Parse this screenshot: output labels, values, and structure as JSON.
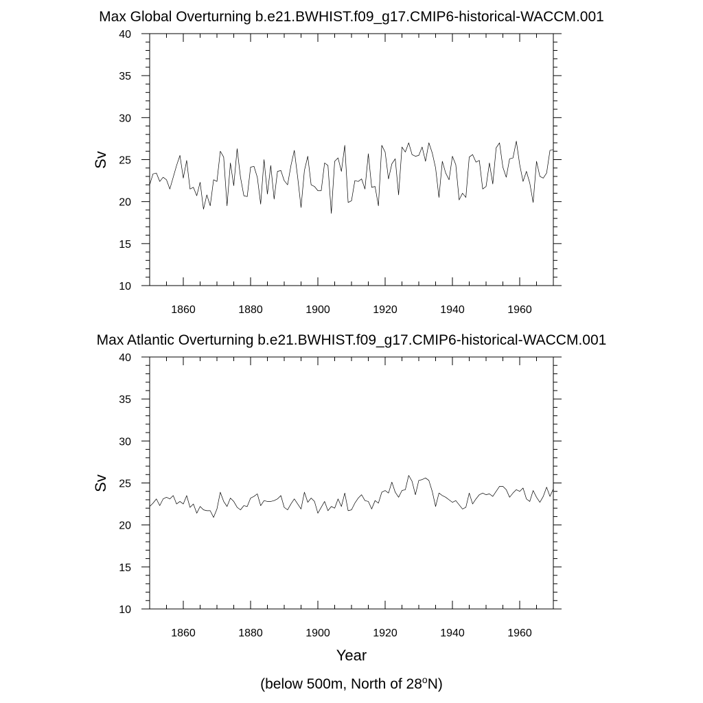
{
  "figure_footnote": "(below 500m, North of 28",
  "figure_footnote_sup": "o",
  "figure_footnote_end": "N)",
  "chart_data": [
    {
      "type": "line",
      "title": "Max Global Overturning b.e21.BWHIST.f09_g17.CMIP6-historical-WACCM.001",
      "xlabel": "",
      "ylabel": "Sv",
      "xlim": [
        1850,
        1970
      ],
      "ylim": [
        10,
        40
      ],
      "xticks": [
        1860,
        1880,
        1900,
        1920,
        1940,
        1960
      ],
      "yticks": [
        10,
        15,
        20,
        25,
        30,
        35,
        40
      ],
      "x_start": 1850,
      "x_step": 1,
      "series": [
        {
          "name": "Max Global Overturning",
          "values": [
            22.0,
            23.3,
            23.4,
            22.4,
            22.9,
            22.6,
            21.5,
            22.9,
            24.3,
            25.5,
            22.8,
            24.9,
            21.5,
            21.7,
            20.7,
            22.3,
            19.1,
            20.8,
            19.5,
            22.6,
            22.4,
            26.0,
            25.3,
            19.5,
            24.6,
            21.9,
            26.3,
            22.9,
            20.7,
            20.6,
            24.1,
            24.2,
            22.9,
            19.7,
            25.0,
            20.9,
            24.3,
            20.3,
            23.6,
            23.7,
            22.5,
            22.0,
            24.3,
            26.1,
            22.9,
            19.3,
            23.7,
            25.4,
            22.0,
            21.8,
            21.3,
            21.3,
            24.6,
            24.3,
            18.6,
            24.8,
            25.2,
            23.6,
            26.7,
            19.9,
            20.1,
            22.5,
            22.4,
            22.7,
            21.5,
            25.7,
            21.7,
            21.8,
            19.5,
            26.7,
            25.9,
            22.7,
            24.5,
            25.1,
            20.8,
            26.5,
            25.9,
            27.0,
            25.6,
            25.4,
            25.5,
            26.5,
            24.8,
            27.0,
            25.8,
            24.0,
            20.5,
            24.8,
            23.4,
            22.6,
            25.4,
            24.4,
            20.2,
            21.0,
            20.5,
            25.3,
            25.6,
            24.7,
            24.9,
            21.5,
            21.8,
            24.6,
            22.1,
            26.4,
            27.0,
            24.1,
            22.9,
            25.1,
            25.2,
            27.2,
            24.4,
            22.4,
            23.6,
            22.2,
            19.9,
            24.8,
            23.0,
            22.8,
            23.4,
            26.1,
            26.2
          ]
        }
      ]
    },
    {
      "type": "line",
      "title": "Max Atlantic Overturning b.e21.BWHIST.f09_g17.CMIP6-historical-WACCM.001",
      "xlabel": "Year",
      "ylabel": "Sv",
      "xlim": [
        1850,
        1970
      ],
      "ylim": [
        10,
        40
      ],
      "xticks": [
        1860,
        1880,
        1900,
        1920,
        1940,
        1960
      ],
      "yticks": [
        10,
        15,
        20,
        25,
        30,
        35,
        40
      ],
      "x_start": 1850,
      "x_step": 1,
      "series": [
        {
          "name": "Max Atlantic Overturning",
          "values": [
            22.2,
            22.6,
            23.1,
            22.3,
            23.1,
            23.3,
            23.1,
            23.5,
            22.5,
            22.8,
            22.5,
            23.5,
            22.1,
            22.5,
            21.4,
            22.2,
            21.8,
            21.7,
            21.7,
            20.9,
            21.9,
            23.9,
            22.8,
            22.2,
            23.2,
            22.8,
            22.1,
            21.8,
            22.3,
            22.2,
            23.2,
            23.4,
            23.7,
            22.3,
            22.9,
            22.8,
            22.8,
            22.9,
            23.1,
            23.5,
            22.1,
            21.8,
            22.5,
            23.1,
            22.5,
            21.9,
            23.9,
            22.7,
            23.2,
            22.8,
            21.4,
            22.1,
            22.8,
            21.7,
            22.2,
            22.0,
            23.1,
            22.2,
            23.8,
            21.7,
            21.8,
            22.6,
            23.2,
            23.6,
            22.9,
            22.8,
            21.9,
            22.9,
            22.6,
            23.9,
            24.1,
            23.8,
            25.1,
            23.9,
            23.3,
            24.1,
            24.2,
            25.9,
            25.2,
            23.6,
            25.3,
            25.4,
            25.6,
            25.3,
            24.0,
            22.2,
            23.8,
            23.5,
            23.3,
            23.0,
            22.7,
            22.9,
            22.4,
            21.9,
            22.1,
            23.8,
            22.5,
            23.1,
            23.6,
            23.8,
            23.6,
            23.7,
            23.4,
            24.0,
            24.6,
            24.6,
            24.2,
            23.3,
            23.8,
            24.2,
            24.0,
            24.4,
            23.1,
            22.8,
            24.1,
            23.3,
            22.7,
            23.4,
            24.5,
            23.4,
            24.3
          ]
        }
      ]
    }
  ]
}
